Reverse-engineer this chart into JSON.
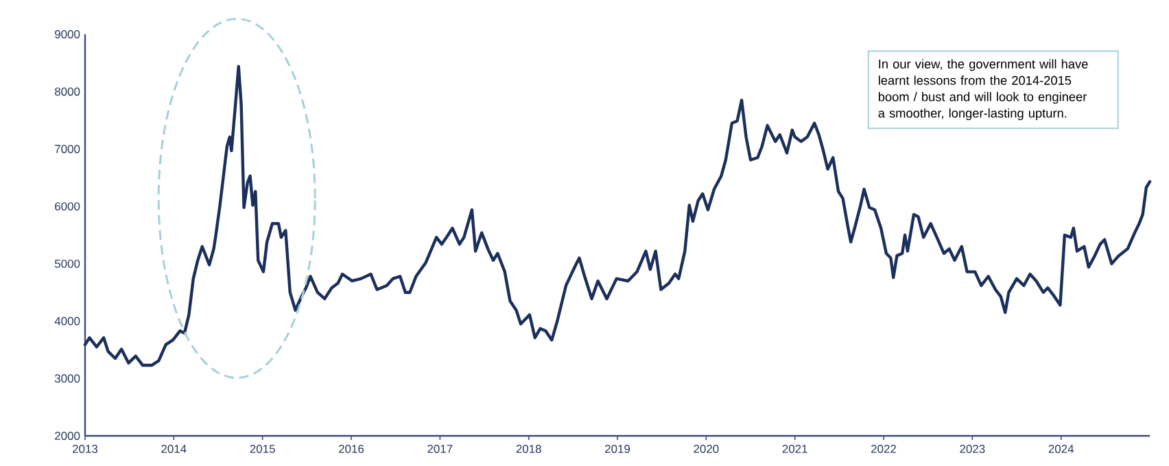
{
  "chart_data": {
    "type": "line",
    "annotations": [
      "In our view, the government will have learnt lessons from the 2014-2015 boom / bust and will look to engineer a smoother, longer-lasting upturn."
    ],
    "x": [
      2013.0,
      2013.05,
      2013.13,
      2013.21,
      2013.26,
      2013.34,
      2013.41,
      2013.49,
      2013.57,
      2013.65,
      2013.75,
      2013.83,
      2013.91,
      2013.99,
      2014.07,
      2014.12,
      2014.17,
      2014.22,
      2014.27,
      2014.32,
      2014.4,
      2014.45,
      2014.47,
      2014.52,
      2014.6,
      2014.63,
      2014.65,
      2014.69,
      2014.73,
      2014.76,
      2014.79,
      2014.83,
      2014.86,
      2014.89,
      2014.92,
      2014.95,
      2015.01,
      2015.05,
      2015.11,
      2015.18,
      2015.21,
      2015.26,
      2015.31,
      2015.37,
      2015.44,
      2015.49,
      2015.54,
      2015.62,
      2015.7,
      2015.78,
      2015.85,
      2015.9,
      2016.01,
      2016.11,
      2016.22,
      2016.29,
      2016.4,
      2016.47,
      2016.55,
      2016.61,
      2016.66,
      2016.73,
      2016.84,
      2016.96,
      2017.02,
      2017.09,
      2017.14,
      2017.22,
      2017.27,
      2017.36,
      2017.4,
      2017.47,
      2017.54,
      2017.6,
      2017.65,
      2017.73,
      2017.79,
      2017.86,
      2017.91,
      2018.01,
      2018.07,
      2018.13,
      2018.19,
      2018.26,
      2018.32,
      2018.42,
      2018.53,
      2018.57,
      2018.63,
      2018.71,
      2018.78,
      2018.88,
      2018.99,
      2019.12,
      2019.22,
      2019.32,
      2019.37,
      2019.43,
      2019.49,
      2019.58,
      2019.65,
      2019.69,
      2019.76,
      2019.81,
      2019.85,
      2019.91,
      2019.96,
      2020.02,
      2020.09,
      2020.17,
      2020.22,
      2020.29,
      2020.35,
      2020.4,
      2020.45,
      2020.5,
      2020.58,
      2020.63,
      2020.69,
      2020.78,
      2020.83,
      2020.91,
      2020.97,
      2021.0,
      2021.07,
      2021.14,
      2021.22,
      2021.27,
      2021.32,
      2021.37,
      2021.43,
      2021.49,
      2021.54,
      2021.6,
      2021.63,
      2021.68,
      2021.74,
      2021.78,
      2021.84,
      2021.9,
      2021.97,
      2022.03,
      2022.08,
      2022.11,
      2022.15,
      2022.21,
      2022.24,
      2022.27,
      2022.34,
      2022.39,
      2022.45,
      2022.53,
      2022.6,
      2022.68,
      2022.74,
      2022.8,
      2022.88,
      2022.94,
      2023.03,
      2023.1,
      2023.18,
      2023.26,
      2023.32,
      2023.37,
      2023.41,
      2023.5,
      2023.58,
      2023.65,
      2023.72,
      2023.8,
      2023.85,
      2023.91,
      2023.99,
      2024.04,
      2024.11,
      2024.14,
      2024.18,
      2024.26,
      2024.31,
      2024.38,
      2024.44,
      2024.49,
      2024.57,
      2024.65,
      2024.75,
      2024.83,
      2024.88,
      2024.92,
      2024.96,
      2025.0
    ],
    "series": [
      {
        "color": "#1b2f5b",
        "values": [
          3590,
          3710,
          3550,
          3710,
          3470,
          3350,
          3510,
          3270,
          3390,
          3230,
          3230,
          3310,
          3590,
          3670,
          3830,
          3790,
          4110,
          4740,
          5060,
          5300,
          4980,
          5260,
          5460,
          6020,
          7050,
          7210,
          6970,
          7690,
          8440,
          7770,
          5980,
          6410,
          6530,
          6020,
          6260,
          5060,
          4860,
          5380,
          5700,
          5700,
          5460,
          5580,
          4500,
          4190,
          4430,
          4580,
          4780,
          4500,
          4390,
          4580,
          4660,
          4820,
          4700,
          4740,
          4820,
          4550,
          4620,
          4740,
          4780,
          4500,
          4500,
          4780,
          5020,
          5460,
          5340,
          5500,
          5620,
          5340,
          5460,
          5940,
          5220,
          5540,
          5260,
          5060,
          5180,
          4860,
          4350,
          4190,
          3950,
          4110,
          3710,
          3870,
          3830,
          3670,
          3990,
          4620,
          4980,
          5100,
          4780,
          4390,
          4700,
          4390,
          4740,
          4700,
          4860,
          5220,
          4900,
          5220,
          4550,
          4660,
          4820,
          4740,
          5220,
          6020,
          5740,
          6100,
          6220,
          5940,
          6300,
          6530,
          6810,
          7450,
          7490,
          7850,
          7210,
          6810,
          6850,
          7050,
          7410,
          7130,
          7250,
          6930,
          7330,
          7210,
          7130,
          7210,
          7450,
          7250,
          6970,
          6650,
          6850,
          6260,
          6140,
          5620,
          5380,
          5660,
          6020,
          6300,
          5980,
          5940,
          5620,
          5180,
          5100,
          4760,
          5140,
          5180,
          5500,
          5220,
          5860,
          5820,
          5460,
          5700,
          5460,
          5180,
          5260,
          5060,
          5300,
          4860,
          4860,
          4620,
          4780,
          4550,
          4430,
          4150,
          4500,
          4740,
          4620,
          4820,
          4700,
          4500,
          4580,
          4460,
          4280,
          5500,
          5460,
          5620,
          5220,
          5300,
          4940,
          5140,
          5340,
          5420,
          5000,
          5140,
          5260,
          5540,
          5700,
          5860,
          6330,
          6430
        ]
      }
    ],
    "xlim": [
      2013,
      2025
    ],
    "xticks": [
      2013,
      2014,
      2015,
      2016,
      2017,
      2018,
      2019,
      2020,
      2021,
      2022,
      2023,
      2024
    ],
    "ylim": [
      2000,
      9000
    ],
    "yticks": [
      2000,
      3000,
      4000,
      5000,
      6000,
      7000,
      8000,
      9000
    ],
    "line_style": "solid"
  }
}
